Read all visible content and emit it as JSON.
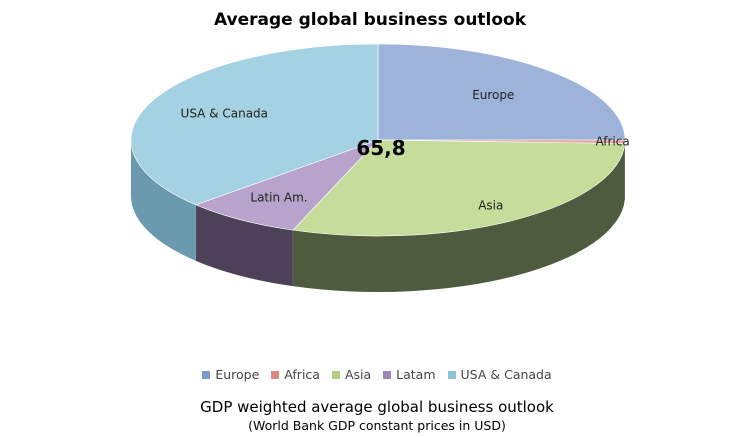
{
  "chart_data": {
    "type": "pie",
    "title": "Average global business outlook",
    "center_value": "65,8",
    "slices": [
      {
        "label": "Europe",
        "value": 25,
        "color": "#9DB3DA",
        "side": "#5B6E94"
      },
      {
        "label": "Africa",
        "value": 0.6,
        "color": "#E6A5A3",
        "side": "#9C6563"
      },
      {
        "label": "Asia",
        "value": 30,
        "color": "#C5DC9A",
        "side": "#4E5B3F"
      },
      {
        "label": "Latin Am.",
        "value": 7.6,
        "color": "#B7A3CC",
        "side": "#4C4159"
      },
      {
        "label": "USA & Canada",
        "value": 36.8,
        "color": "#A5D2E3",
        "side": "#6B9AAE"
      }
    ],
    "legend": [
      "Europe",
      "Africa",
      "Asia",
      "Latam",
      "USA & Canada"
    ],
    "legend_colors": [
      "#7F99C8",
      "#D98986",
      "#B3CE7E",
      "#9E86B9",
      "#8FC4D8"
    ],
    "caption": "GDP weighted average global business outlook",
    "subcaption": "(World Bank GDP constant prices in USD)"
  }
}
